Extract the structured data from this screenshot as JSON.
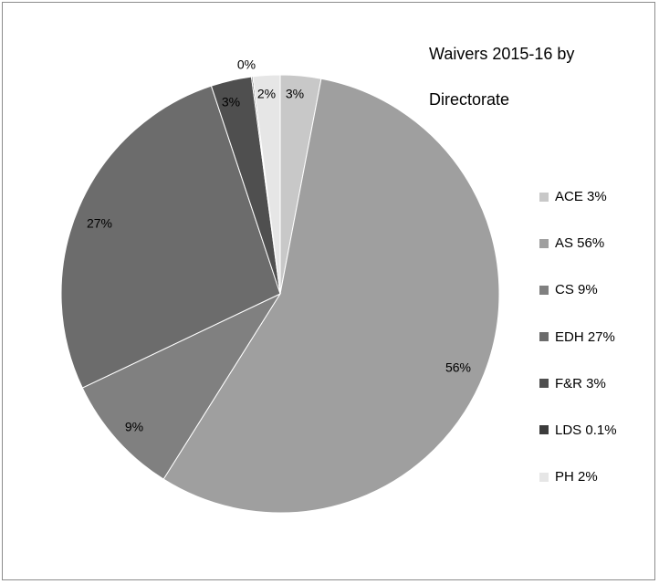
{
  "chart_data": {
    "type": "pie",
    "title_lines": [
      "Waivers 2015-16 by",
      "Directorate"
    ],
    "categories": [
      "ACE",
      "AS",
      "CS",
      "EDH",
      "F&R",
      "LDS",
      "PH"
    ],
    "values": [
      3,
      56,
      9,
      27,
      3,
      0.1,
      2
    ],
    "data_labels": [
      "3%",
      "56%",
      "9%",
      "27%",
      "3%",
      "0%",
      "2%"
    ],
    "legend_labels": [
      "ACE 3%",
      "AS 56%",
      "CS 9%",
      "EDH 27%",
      "F&R 3%",
      "LDS 0.1%",
      "PH 2%"
    ],
    "colors": [
      "#c8c8c8",
      "#9f9f9f",
      "#808080",
      "#6c6c6c",
      "#4f4f4f",
      "#3c3c3c",
      "#e6e6e6"
    ],
    "legend_position": "right",
    "start_angle_deg": 0,
    "direction": "clockwise"
  }
}
